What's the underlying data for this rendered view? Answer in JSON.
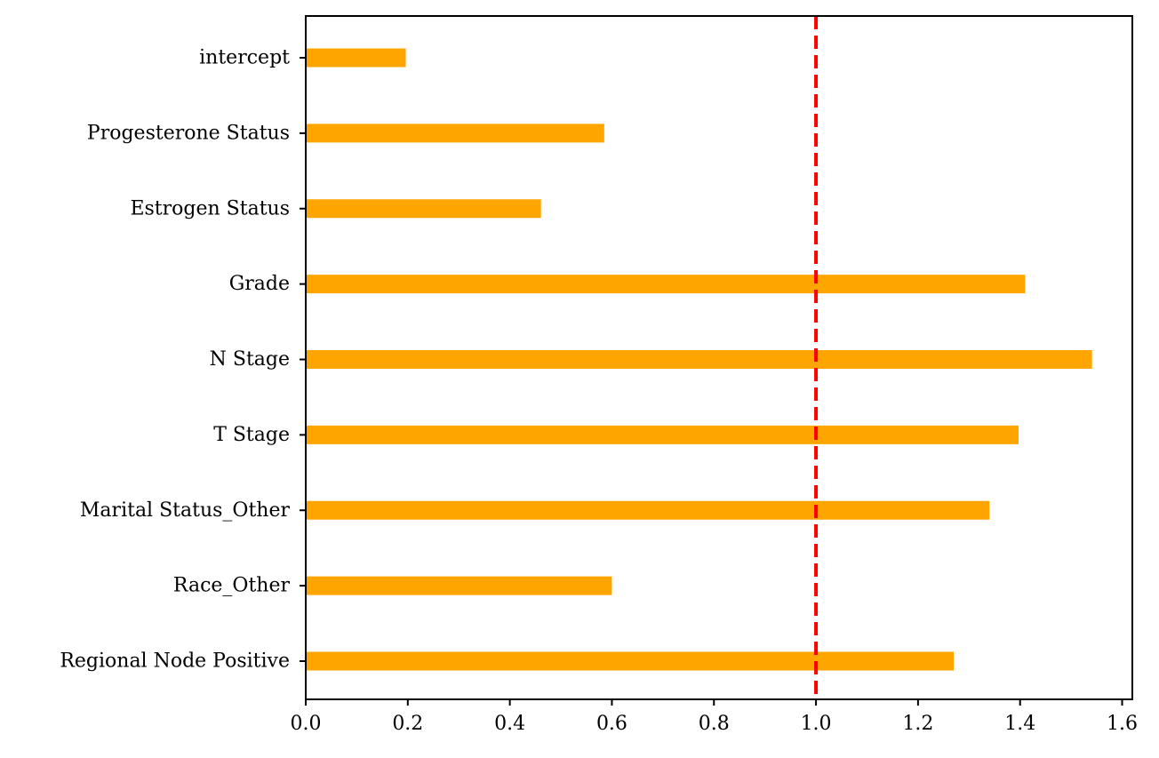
{
  "chart_data": {
    "type": "bar",
    "orientation": "horizontal",
    "title": "",
    "xlabel": "",
    "ylabel": "",
    "categories": [
      "intercept",
      "Progesterone Status",
      "Estrogen Status",
      "Grade",
      "N Stage",
      "T Stage",
      "Marital Status_Other",
      "Race_Other",
      "Regional Node Positive"
    ],
    "values": [
      0.196,
      0.585,
      0.461,
      1.41,
      1.541,
      1.397,
      1.34,
      0.6,
      1.27
    ],
    "xlim": [
      0.0,
      1.62
    ],
    "xticks": [
      "0.0",
      "0.2",
      "0.4",
      "0.6",
      "0.8",
      "1.0",
      "1.2",
      "1.4",
      "1.6"
    ],
    "reference_line": {
      "x": 1.0,
      "style": "dashed",
      "color": "#ff0000"
    },
    "bar_color": "#ffa500",
    "grid": false,
    "legend": "none"
  }
}
